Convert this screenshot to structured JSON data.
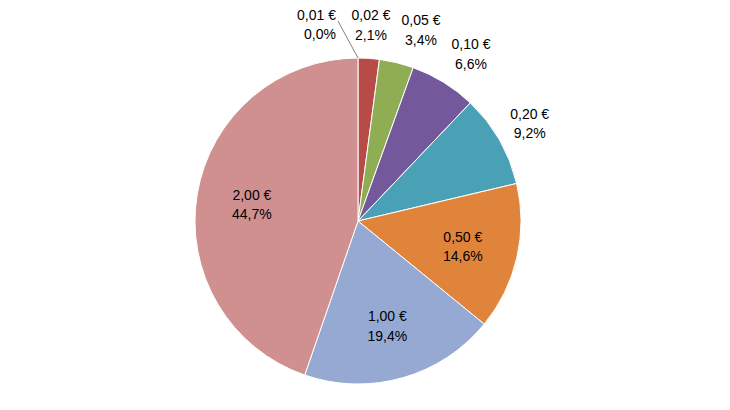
{
  "chart_data": {
    "type": "pie",
    "categories": [
      "0,01 €",
      "0,02 €",
      "0,05 €",
      "0,10 €",
      "0,20 €",
      "0,50 €",
      "1,00 €",
      "2,00 €"
    ],
    "values": [
      0.0,
      2.1,
      3.4,
      6.6,
      9.2,
      14.6,
      19.4,
      44.7
    ],
    "value_labels": [
      "0,0%",
      "2,1%",
      "3,4%",
      "6,6%",
      "9,2%",
      "14,6%",
      "19,4%",
      "44,7%"
    ],
    "colors": [
      "#4f81bd",
      "#b84a47",
      "#8fae53",
      "#73589c",
      "#4aa0b5",
      "#e0843c",
      "#95a9d3",
      "#d09090"
    ],
    "data_labels": true
  }
}
